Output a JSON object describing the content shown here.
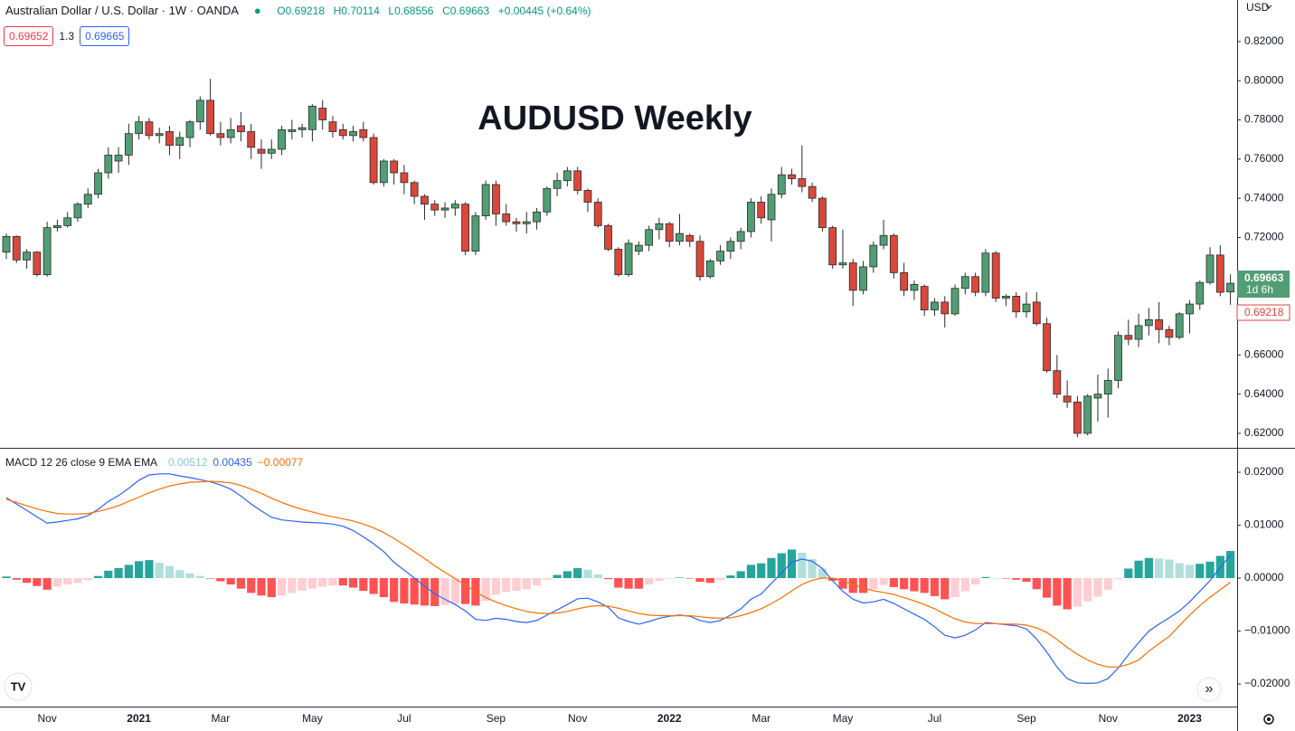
{
  "header": {
    "symbol": "Australian Dollar / U.S. Dollar · 1W · OANDA",
    "ohlc": [
      "O0.69218",
      "H0.70114",
      "L0.68556",
      "C0.69663",
      "+0.00445 (+0.64%)"
    ],
    "sell": "0.69652",
    "spread": "1.3",
    "buy": "0.69665",
    "currency": "USD",
    "price_label": "0.69663",
    "countdown": "1d 6h",
    "open_label": "0.69218"
  },
  "chart_data": [
    {
      "type": "candlestick",
      "title": "AUDUSD Weekly",
      "categories": [
        null,
        null,
        null,
        null,
        "Nov",
        null,
        null,
        null,
        null,
        null,
        null,
        null,
        null,
        "2021",
        null,
        null,
        null,
        null,
        null,
        null,
        null,
        "Mar",
        null,
        null,
        null,
        null,
        null,
        null,
        null,
        null,
        "May",
        null,
        null,
        null,
        null,
        null,
        null,
        null,
        null,
        "Jul",
        null,
        null,
        null,
        null,
        null,
        null,
        null,
        null,
        "Sep",
        null,
        null,
        null,
        null,
        null,
        null,
        null,
        "Nov",
        null,
        null,
        null,
        null,
        null,
        null,
        null,
        null,
        "2022",
        null,
        null,
        null,
        null,
        null,
        null,
        null,
        null,
        "Mar",
        null,
        null,
        null,
        null,
        null,
        null,
        null,
        "May",
        null,
        null,
        null,
        null,
        null,
        null,
        null,
        null,
        "Jul",
        null,
        null,
        null,
        null,
        null,
        null,
        null,
        null,
        "Sep",
        null,
        null,
        null,
        null,
        null,
        null,
        null,
        "Nov",
        null,
        null,
        null,
        null,
        null,
        null,
        null,
        "2023",
        null,
        null,
        null,
        null
      ],
      "open": [
        0.7125,
        0.7205,
        0.7085,
        0.7125,
        0.701,
        0.725,
        0.726,
        0.73,
        0.737,
        0.742,
        0.753,
        0.759,
        0.762,
        0.773,
        0.779,
        0.772,
        0.774,
        0.767,
        0.771,
        0.779,
        0.79,
        0.773,
        0.771,
        0.777,
        0.774,
        0.765,
        0.763,
        0.765,
        0.774,
        0.775,
        0.775,
        0.786,
        0.779,
        0.775,
        0.772,
        0.775,
        0.771,
        0.748,
        0.759,
        0.753,
        0.748,
        0.741,
        0.737,
        0.734,
        0.735,
        0.737,
        0.713,
        0.731,
        0.747,
        0.732,
        0.728,
        0.727,
        0.728,
        0.733,
        0.745,
        0.749,
        0.754,
        0.744,
        0.738,
        0.726,
        0.714,
        0.701,
        0.713,
        0.716,
        0.724,
        0.727,
        0.718,
        0.721,
        0.718,
        0.7,
        0.708,
        0.713,
        0.718,
        0.723,
        0.738,
        0.729,
        0.742,
        0.752,
        0.75,
        0.746,
        0.74,
        0.725,
        0.706,
        0.707,
        0.693,
        0.705,
        0.716,
        0.721,
        0.702,
        0.693,
        0.695,
        0.683,
        0.687,
        0.681,
        0.694,
        0.7,
        0.692,
        0.712,
        0.689,
        0.69,
        0.682,
        0.687,
        0.676,
        0.652,
        0.639,
        0.636,
        0.62,
        0.638,
        0.64,
        0.647,
        0.67,
        0.668,
        0.675,
        0.678,
        0.673,
        0.669,
        0.681,
        0.686,
        0.697,
        0.711,
        0.69218
      ],
      "high": [
        0.722,
        0.721,
        0.714,
        0.713,
        0.728,
        0.729,
        0.733,
        0.738,
        0.745,
        0.755,
        0.766,
        0.766,
        0.778,
        0.782,
        0.781,
        0.776,
        0.777,
        0.774,
        0.78,
        0.792,
        0.801,
        0.779,
        0.781,
        0.784,
        0.778,
        0.77,
        0.77,
        0.777,
        0.78,
        0.778,
        0.788,
        0.79,
        0.782,
        0.778,
        0.777,
        0.779,
        0.773,
        0.76,
        0.76,
        0.757,
        0.749,
        0.742,
        0.739,
        0.738,
        0.739,
        0.738,
        0.733,
        0.749,
        0.749,
        0.737,
        0.73,
        0.733,
        0.735,
        0.746,
        0.753,
        0.756,
        0.756,
        0.745,
        0.74,
        0.727,
        0.715,
        0.719,
        0.718,
        0.726,
        0.73,
        0.728,
        0.732,
        0.722,
        0.721,
        0.709,
        0.716,
        0.72,
        0.725,
        0.74,
        0.741,
        0.745,
        0.756,
        0.755,
        0.767,
        0.748,
        0.741,
        0.726,
        0.724,
        0.709,
        0.708,
        0.718,
        0.729,
        0.722,
        0.707,
        0.698,
        0.696,
        0.689,
        0.69,
        0.696,
        0.702,
        0.702,
        0.714,
        0.713,
        0.691,
        0.692,
        0.692,
        0.692,
        0.679,
        0.66,
        0.647,
        0.639,
        0.64,
        0.65,
        0.653,
        0.672,
        0.678,
        0.681,
        0.684,
        0.687,
        0.675,
        0.682,
        0.688,
        0.698,
        0.715,
        0.716,
        0.70114
      ],
      "low": [
        0.709,
        0.707,
        0.704,
        0.7,
        0.7,
        0.723,
        0.725,
        0.728,
        0.735,
        0.74,
        0.75,
        0.753,
        0.757,
        0.77,
        0.77,
        0.768,
        0.762,
        0.76,
        0.766,
        0.775,
        0.772,
        0.767,
        0.768,
        0.769,
        0.76,
        0.755,
        0.76,
        0.762,
        0.77,
        0.771,
        0.769,
        0.775,
        0.771,
        0.77,
        0.769,
        0.769,
        0.747,
        0.746,
        0.747,
        0.742,
        0.737,
        0.729,
        0.731,
        0.73,
        0.731,
        0.711,
        0.711,
        0.729,
        0.726,
        0.726,
        0.723,
        0.722,
        0.724,
        0.731,
        0.741,
        0.746,
        0.742,
        0.733,
        0.725,
        0.713,
        0.7,
        0.7,
        0.711,
        0.713,
        0.719,
        0.715,
        0.716,
        0.715,
        0.698,
        0.699,
        0.706,
        0.709,
        0.714,
        0.72,
        0.727,
        0.718,
        0.74,
        0.747,
        0.743,
        0.738,
        0.723,
        0.704,
        0.704,
        0.685,
        0.691,
        0.702,
        0.714,
        0.699,
        0.69,
        0.688,
        0.68,
        0.68,
        0.674,
        0.68,
        0.691,
        0.69,
        0.69,
        0.687,
        0.685,
        0.679,
        0.679,
        0.675,
        0.651,
        0.638,
        0.633,
        0.618,
        0.619,
        0.626,
        0.628,
        0.643,
        0.665,
        0.664,
        0.67,
        0.666,
        0.665,
        0.668,
        0.671,
        0.683,
        0.696,
        0.69,
        0.68556
      ],
      "close": [
        0.7205,
        0.7085,
        0.7125,
        0.701,
        0.725,
        0.726,
        0.73,
        0.737,
        0.742,
        0.753,
        0.762,
        0.762,
        0.773,
        0.779,
        0.772,
        0.773,
        0.767,
        0.771,
        0.779,
        0.79,
        0.773,
        0.771,
        0.775,
        0.774,
        0.766,
        0.763,
        0.765,
        0.775,
        0.775,
        0.776,
        0.787,
        0.78,
        0.774,
        0.772,
        0.774,
        0.771,
        0.748,
        0.759,
        0.753,
        0.748,
        0.741,
        0.737,
        0.734,
        0.735,
        0.737,
        0.713,
        0.731,
        0.747,
        0.732,
        0.728,
        0.727,
        0.728,
        0.733,
        0.745,
        0.749,
        0.754,
        0.744,
        0.738,
        0.726,
        0.714,
        0.701,
        0.717,
        0.716,
        0.724,
        0.727,
        0.718,
        0.722,
        0.718,
        0.7,
        0.708,
        0.713,
        0.718,
        0.723,
        0.738,
        0.73,
        0.742,
        0.752,
        0.75,
        0.746,
        0.74,
        0.725,
        0.706,
        0.707,
        0.693,
        0.705,
        0.716,
        0.721,
        0.702,
        0.693,
        0.696,
        0.683,
        0.687,
        0.681,
        0.694,
        0.7,
        0.692,
        0.712,
        0.689,
        0.69,
        0.682,
        0.686,
        0.676,
        0.652,
        0.64,
        0.636,
        0.62,
        0.639,
        0.64,
        0.647,
        0.67,
        0.668,
        0.675,
        0.678,
        0.673,
        0.669,
        0.681,
        0.686,
        0.697,
        0.711,
        0.692,
        0.69663
      ],
      "up_color": "#529e74",
      "down_color": "#d9483b",
      "title_color": "#f7931a",
      "ylim": [
        0.6126,
        0.8412
      ],
      "yticks": [
        {
          "value": 0.62,
          "label": "0.62000"
        },
        {
          "value": 0.64,
          "label": "0.64000"
        },
        {
          "value": 0.66,
          "label": "0.66000"
        },
        {
          "value": 0.68,
          "label": "0.68000"
        },
        {
          "value": 0.7,
          "label": "0.70000"
        },
        {
          "value": 0.72,
          "label": "0.72000"
        },
        {
          "value": 0.74,
          "label": "0.74000"
        },
        {
          "value": 0.76,
          "label": "0.76000"
        },
        {
          "value": 0.78,
          "label": "0.78000"
        },
        {
          "value": 0.8,
          "label": "0.80000"
        },
        {
          "value": 0.82,
          "label": "0.82000"
        }
      ]
    },
    {
      "type": "macd",
      "title": "MACD 12 26 close 9 EMA EMA",
      "series": [
        {
          "type": "histogram",
          "color": "#89c9c3",
          "last_label": "0.00512",
          "colors": [
            "#26a69a",
            "#b2dfdb",
            "#ff5252",
            "#ffcdd2"
          ],
          "values": [
            0.0003,
            -0.0003,
            -0.0009,
            -0.0015,
            -0.0022,
            -0.0016,
            -0.0012,
            -0.0009,
            -0.0004,
            0.0004,
            0.0014,
            0.0019,
            0.0025,
            0.0032,
            0.0034,
            0.0029,
            0.0023,
            0.0015,
            0.0009,
            0.0004,
            -0.0001,
            -0.0006,
            -0.0012,
            -0.002,
            -0.0028,
            -0.0033,
            -0.0036,
            -0.0033,
            -0.0028,
            -0.0024,
            -0.002,
            -0.0016,
            -0.0014,
            -0.0014,
            -0.0018,
            -0.0024,
            -0.003,
            -0.0036,
            -0.0045,
            -0.0048,
            -0.005,
            -0.0052,
            -0.0053,
            -0.0051,
            -0.0049,
            -0.0049,
            -0.0052,
            -0.0043,
            -0.0031,
            -0.0026,
            -0.0024,
            -0.0021,
            -0.0014,
            -0.0003,
            0.0006,
            0.0013,
            0.0019,
            0.0016,
            0.0007,
            -0.0002,
            -0.0018,
            -0.002,
            -0.002,
            -0.0012,
            -0.0005,
            -0.0001,
            0.0001,
            -0.0001,
            -0.0007,
            -0.0009,
            -0.0004,
            0.0005,
            0.0013,
            0.0025,
            0.0028,
            0.0038,
            0.0047,
            0.0054,
            0.0048,
            0.0036,
            0.0018,
            -0.0005,
            -0.002,
            -0.0028,
            -0.0028,
            -0.0021,
            -0.0013,
            -0.0017,
            -0.0021,
            -0.0025,
            -0.0028,
            -0.0034,
            -0.004,
            -0.0036,
            -0.0025,
            -0.0012,
            0.0002,
            0.0,
            -0.0001,
            -0.0003,
            -0.0007,
            -0.0021,
            -0.0037,
            -0.0052,
            -0.0059,
            -0.0054,
            -0.0044,
            -0.0035,
            -0.0022,
            -0.0002,
            0.0018,
            0.0033,
            0.0038,
            0.0037,
            0.0035,
            0.0028,
            0.0025,
            0.0027,
            0.0031,
            0.0042,
            0.00512
          ]
        },
        {
          "type": "line",
          "color": "#2962ff",
          "last_label": "0.00435",
          "values": [
            0.0152,
            0.014,
            0.0128,
            0.0116,
            0.0104,
            0.0106,
            0.0109,
            0.0112,
            0.0118,
            0.013,
            0.0145,
            0.0156,
            0.017,
            0.0185,
            0.0195,
            0.0197,
            0.0197,
            0.0193,
            0.019,
            0.0186,
            0.0182,
            0.0176,
            0.0168,
            0.0155,
            0.014,
            0.0127,
            0.0115,
            0.011,
            0.0108,
            0.0106,
            0.0105,
            0.0104,
            0.0102,
            0.0098,
            0.009,
            0.0078,
            0.0065,
            0.005,
            0.003,
            0.0015,
            0.0,
            -0.0015,
            -0.003,
            -0.004,
            -0.005,
            -0.0062,
            -0.0078,
            -0.008,
            -0.0076,
            -0.0078,
            -0.0082,
            -0.0084,
            -0.008,
            -0.007,
            -0.006,
            -0.005,
            -0.0039,
            -0.0038,
            -0.0045,
            -0.0055,
            -0.0075,
            -0.0082,
            -0.0087,
            -0.0082,
            -0.0076,
            -0.0072,
            -0.007,
            -0.0072,
            -0.008,
            -0.0084,
            -0.008,
            -0.007,
            -0.0058,
            -0.004,
            -0.003,
            -0.001,
            0.001,
            0.003,
            0.0036,
            0.0032,
            0.0018,
            -0.0005,
            -0.0025,
            -0.004,
            -0.0047,
            -0.0045,
            -0.004,
            -0.0048,
            -0.0058,
            -0.0068,
            -0.0078,
            -0.0092,
            -0.0108,
            -0.0113,
            -0.0108,
            -0.0098,
            -0.0084,
            -0.0086,
            -0.0088,
            -0.009,
            -0.0096,
            -0.0115,
            -0.014,
            -0.0168,
            -0.019,
            -0.0198,
            -0.0199,
            -0.0198,
            -0.019,
            -0.017,
            -0.0145,
            -0.0122,
            -0.01,
            -0.0087,
            -0.0075,
            -0.0062,
            -0.0045,
            -0.0025,
            -0.0005,
            0.002,
            0.00435
          ]
        },
        {
          "type": "line",
          "color": "#ff6d00",
          "last_label": "−0.00077",
          "values": [
            0.0149,
            0.0143,
            0.0137,
            0.0131,
            0.0126,
            0.0122,
            0.0121,
            0.0121,
            0.0122,
            0.0126,
            0.0131,
            0.0137,
            0.0145,
            0.0153,
            0.0161,
            0.0168,
            0.0174,
            0.0178,
            0.0181,
            0.0182,
            0.0183,
            0.0182,
            0.018,
            0.0175,
            0.0168,
            0.016,
            0.0151,
            0.0143,
            0.0136,
            0.013,
            0.0125,
            0.012,
            0.0116,
            0.0112,
            0.0108,
            0.0102,
            0.0095,
            0.0086,
            0.0075,
            0.0063,
            0.005,
            0.0037,
            0.0023,
            0.0011,
            -0.0001,
            -0.0013,
            -0.0026,
            -0.0037,
            -0.0045,
            -0.0052,
            -0.0058,
            -0.0063,
            -0.0066,
            -0.0067,
            -0.0066,
            -0.0063,
            -0.0058,
            -0.0054,
            -0.0052,
            -0.0053,
            -0.0057,
            -0.0062,
            -0.0067,
            -0.007,
            -0.0071,
            -0.0071,
            -0.0071,
            -0.0071,
            -0.0073,
            -0.0075,
            -0.0076,
            -0.0075,
            -0.0071,
            -0.0065,
            -0.0058,
            -0.0048,
            -0.0037,
            -0.0024,
            -0.0012,
            -0.0004,
            0.0,
            0.0,
            -0.0005,
            -0.0012,
            -0.0019,
            -0.0024,
            -0.0027,
            -0.0031,
            -0.0037,
            -0.0043,
            -0.005,
            -0.0058,
            -0.0068,
            -0.0077,
            -0.0083,
            -0.0086,
            -0.0086,
            -0.0086,
            -0.0087,
            -0.0087,
            -0.0089,
            -0.0094,
            -0.0103,
            -0.0116,
            -0.0131,
            -0.0144,
            -0.0155,
            -0.0163,
            -0.0168,
            -0.0168,
            -0.0163,
            -0.0155,
            -0.0138,
            -0.0124,
            -0.011,
            -0.009,
            -0.007,
            -0.0052,
            -0.0036,
            -0.0022,
            -0.00077
          ]
        }
      ],
      "ylim": [
        -0.02428,
        0.02445
      ],
      "yticks": [
        {
          "value": -0.02,
          "label": "−0.02000"
        },
        {
          "value": -0.01,
          "label": "−0.01000"
        },
        {
          "value": 0,
          "label": "0.00000"
        },
        {
          "value": 0.01,
          "label": "0.01000"
        },
        {
          "value": 0.02,
          "label": "0.02000"
        }
      ]
    }
  ]
}
